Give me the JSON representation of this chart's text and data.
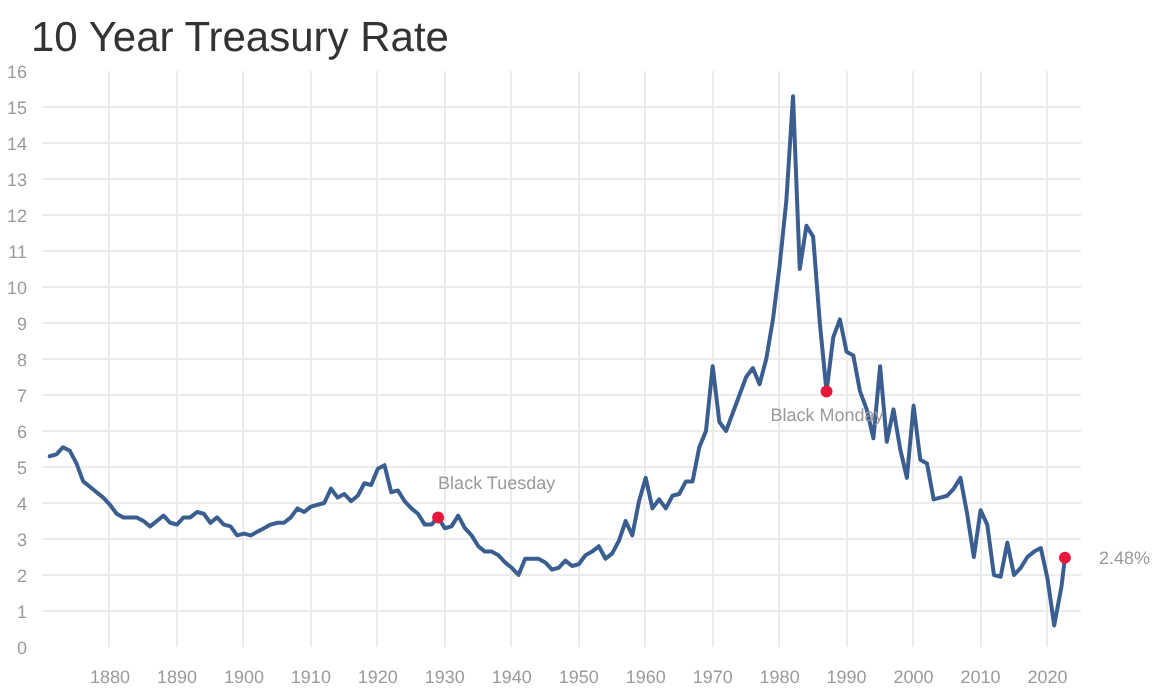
{
  "chart_data": {
    "type": "line",
    "title": "10 Year Treasury Rate",
    "xlim": [
      1870,
      2025
    ],
    "xticks": [
      1880,
      1890,
      1900,
      1910,
      1920,
      1930,
      1940,
      1950,
      1960,
      1970,
      1980,
      1990,
      2000,
      2010,
      2020
    ],
    "ylim": [
      0,
      16
    ],
    "yticks": [
      0,
      1,
      2,
      3,
      4,
      5,
      6,
      7,
      8,
      9,
      10,
      11,
      12,
      13,
      14,
      15,
      16
    ],
    "grid": true,
    "series": [
      {
        "color": "#3a5e8f",
        "x": [
          1871,
          1872,
          1873,
          1874,
          1875,
          1876,
          1877,
          1878,
          1879,
          1880,
          1881,
          1882,
          1883,
          1884,
          1885,
          1886,
          1887,
          1888,
          1889,
          1890,
          1891,
          1892,
          1893,
          1894,
          1895,
          1896,
          1897,
          1898,
          1899,
          1900,
          1901,
          1902,
          1903,
          1904,
          1905,
          1906,
          1907,
          1908,
          1909,
          1910,
          1911,
          1912,
          1913,
          1914,
          1915,
          1916,
          1917,
          1918,
          1919,
          1920,
          1921,
          1922,
          1923,
          1924,
          1925,
          1926,
          1927,
          1928,
          1929,
          1930,
          1931,
          1932,
          1933,
          1934,
          1935,
          1936,
          1937,
          1938,
          1939,
          1940,
          1941,
          1942,
          1943,
          1944,
          1945,
          1946,
          1947,
          1948,
          1949,
          1950,
          1951,
          1952,
          1953,
          1954,
          1955,
          1956,
          1957,
          1958,
          1959,
          1960,
          1961,
          1962,
          1963,
          1964,
          1965,
          1966,
          1967,
          1968,
          1969,
          1970,
          1971,
          1972,
          1973,
          1974,
          1975,
          1976,
          1977,
          1978,
          1979,
          1980,
          1981,
          1982,
          1983,
          1984,
          1985,
          1986,
          1987,
          1988,
          1989,
          1990,
          1991,
          1992,
          1993,
          1994,
          1995,
          1996,
          1997,
          1998,
          1999,
          2000,
          2001,
          2002,
          2003,
          2004,
          2005,
          2006,
          2007,
          2008,
          2009,
          2010,
          2011,
          2012,
          2013,
          2014,
          2015,
          2016,
          2017,
          2018,
          2019,
          2020,
          2021,
          2022.1,
          2022.6
        ],
        "values": [
          5.3,
          5.35,
          5.55,
          5.45,
          5.1,
          4.6,
          4.45,
          4.3,
          4.15,
          3.95,
          3.7,
          3.6,
          3.6,
          3.6,
          3.5,
          3.35,
          3.5,
          3.65,
          3.45,
          3.4,
          3.6,
          3.6,
          3.75,
          3.7,
          3.45,
          3.6,
          3.4,
          3.35,
          3.1,
          3.15,
          3.1,
          3.2,
          3.3,
          3.4,
          3.45,
          3.45,
          3.6,
          3.85,
          3.75,
          3.9,
          3.95,
          4.0,
          4.4,
          4.15,
          4.25,
          4.05,
          4.2,
          4.55,
          4.5,
          4.95,
          5.05,
          4.3,
          4.35,
          4.05,
          3.85,
          3.7,
          3.4,
          3.4,
          3.6,
          3.3,
          3.35,
          3.65,
          3.3,
          3.1,
          2.8,
          2.65,
          2.65,
          2.55,
          2.35,
          2.2,
          2.0,
          2.45,
          2.45,
          2.45,
          2.35,
          2.15,
          2.2,
          2.4,
          2.25,
          2.3,
          2.55,
          2.65,
          2.8,
          2.45,
          2.6,
          2.95,
          3.5,
          3.1,
          4.05,
          4.7,
          3.85,
          4.1,
          3.85,
          4.2,
          4.25,
          4.6,
          4.6,
          5.55,
          6.0,
          7.8,
          6.25,
          6.0,
          6.5,
          7.0,
          7.5,
          7.75,
          7.3,
          8.0,
          9.1,
          10.6,
          12.4,
          15.3,
          10.5,
          11.7,
          11.4,
          9.0,
          7.1,
          8.6,
          9.1,
          8.2,
          8.1,
          7.1,
          6.6,
          5.8,
          7.8,
          5.7,
          6.6,
          5.5,
          4.7,
          6.7,
          5.2,
          5.1,
          4.1,
          4.15,
          4.2,
          4.4,
          4.7,
          3.7,
          2.5,
          3.8,
          3.4,
          2.0,
          1.95,
          2.9,
          2.0,
          2.2,
          2.5,
          2.65,
          2.75,
          1.9,
          0.6,
          1.7,
          2.48
        ]
      },
      {
        "type": "scatter",
        "color": "#e8173c",
        "marker": "circle",
        "x": [
          1929,
          1987,
          2022.6
        ],
        "values": [
          3.6,
          7.1,
          2.48
        ]
      }
    ],
    "annotations": [
      {
        "text": "Black Tuesday",
        "x": 1929,
        "y": 3.6
      },
      {
        "text": "Black Monday",
        "x": 1987,
        "y": 7.1
      },
      {
        "text": "2.48%",
        "x": 2022.6,
        "y": 2.48
      }
    ]
  }
}
